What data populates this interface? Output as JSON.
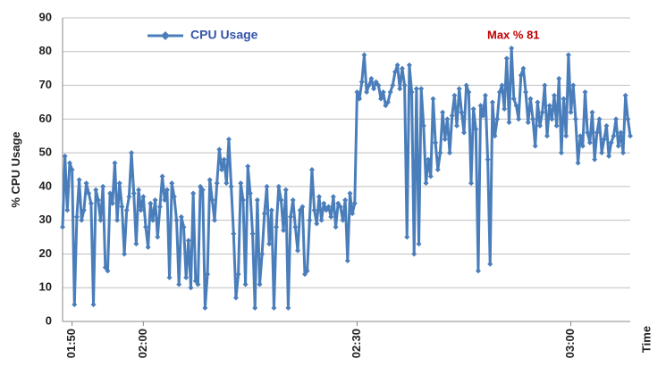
{
  "chart_data": {
    "type": "line",
    "y_label": "% CPU Usage",
    "x_label": "Time",
    "annotation": "Max % 81",
    "annotation_color": "#c00000",
    "grid": true,
    "ylim": [
      0,
      90
    ],
    "yticks": [
      0,
      10,
      20,
      30,
      40,
      50,
      60,
      70,
      80,
      90
    ],
    "categories": [
      null,
      null,
      null,
      null,
      "01:50",
      null,
      null,
      null,
      null,
      null,
      null,
      null,
      null,
      null,
      null,
      null,
      null,
      null,
      null,
      null,
      null,
      null,
      null,
      null,
      null,
      null,
      null,
      null,
      null,
      null,
      null,
      null,
      null,
      null,
      "02:00",
      null,
      null,
      null,
      null,
      null,
      null,
      null,
      null,
      null,
      null,
      null,
      null,
      null,
      null,
      null,
      null,
      null,
      null,
      null,
      null,
      null,
      null,
      null,
      null,
      null,
      null,
      null,
      null,
      null,
      null,
      null,
      null,
      null,
      null,
      null,
      null,
      null,
      null,
      null,
      null,
      null,
      null,
      null,
      null,
      null,
      null,
      null,
      null,
      null,
      null,
      null,
      null,
      null,
      null,
      null,
      null,
      null,
      null,
      null,
      null,
      null,
      null,
      null,
      null,
      null,
      null,
      null,
      null,
      null,
      null,
      null,
      null,
      null,
      null,
      null,
      null,
      null,
      null,
      null,
      null,
      null,
      null,
      null,
      null,
      null,
      null,
      null,
      null,
      null,
      "02:30",
      null,
      null,
      null,
      null,
      null,
      null,
      null,
      null,
      null,
      null,
      null,
      null,
      null,
      null,
      null,
      null,
      null,
      null,
      null,
      null,
      null,
      null,
      null,
      null,
      null,
      null,
      null,
      null,
      null,
      null,
      null,
      null,
      null,
      null,
      null,
      null,
      null,
      null,
      null,
      null,
      null,
      null,
      null,
      null,
      null,
      null,
      null,
      null,
      null,
      null,
      null,
      null,
      null,
      null,
      null,
      null,
      null,
      null,
      null,
      null,
      null,
      null,
      null,
      null,
      null,
      null,
      null,
      null,
      null,
      null,
      null,
      null,
      null,
      null,
      null,
      null,
      null,
      null,
      null,
      null,
      null,
      null,
      null,
      null,
      null,
      null,
      null,
      null,
      null,
      "03:00",
      null,
      null,
      null,
      null,
      null,
      null,
      null,
      null,
      null,
      null,
      null,
      null,
      null,
      null,
      null,
      null,
      null,
      null,
      null,
      null,
      null,
      null,
      null,
      null,
      null
    ],
    "series": [
      {
        "name": "CPU Usage",
        "color": "#4a7ebb",
        "values": [
          28,
          49,
          33,
          47,
          45,
          5,
          31,
          42,
          30,
          33,
          41,
          38,
          35,
          5,
          39,
          36,
          30,
          40,
          16,
          15,
          38,
          35,
          47,
          30,
          41,
          34,
          20,
          33,
          37,
          50,
          38,
          23,
          39,
          33,
          37,
          28,
          22,
          35,
          30,
          36,
          25,
          34,
          43,
          36,
          39,
          13,
          41,
          37,
          30,
          11,
          31,
          28,
          13,
          24,
          10,
          38,
          12,
          11,
          40,
          39,
          4,
          14,
          42,
          36,
          30,
          41,
          51,
          45,
          48,
          41,
          54,
          40,
          26,
          7,
          14,
          41,
          36,
          11,
          46,
          38,
          26,
          4,
          36,
          11,
          20,
          32,
          40,
          23,
          33,
          4,
          28,
          40,
          36,
          27,
          39,
          4,
          31,
          36,
          28,
          21,
          33,
          34,
          14,
          15,
          30,
          45,
          33,
          29,
          37,
          30,
          35,
          33,
          34,
          31,
          37,
          28,
          35,
          34,
          30,
          36,
          18,
          38,
          32,
          35,
          68,
          66,
          71,
          79,
          68,
          70,
          72,
          69,
          71,
          70,
          66,
          68,
          64,
          65,
          68,
          70,
          74,
          76,
          69,
          75,
          70,
          25,
          76,
          68,
          20,
          69,
          23,
          69,
          58,
          41,
          48,
          43,
          66,
          53,
          45,
          50,
          62,
          54,
          60,
          50,
          61,
          67,
          58,
          69,
          62,
          56,
          70,
          68,
          41,
          63,
          57,
          15,
          64,
          61,
          67,
          48,
          17,
          65,
          55,
          60,
          68,
          70,
          63,
          78,
          59,
          81,
          66,
          64,
          60,
          73,
          75,
          68,
          59,
          66,
          60,
          52,
          65,
          58,
          62,
          70,
          55,
          64,
          60,
          67,
          58,
          72,
          50,
          66,
          55,
          79,
          62,
          70,
          60,
          47,
          55,
          52,
          68,
          56,
          53,
          62,
          48,
          56,
          60,
          50,
          54,
          58,
          49,
          53,
          55,
          60,
          52,
          56,
          50,
          67,
          60,
          55
        ]
      }
    ]
  }
}
